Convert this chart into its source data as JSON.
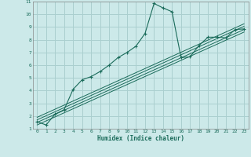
{
  "xlabel": "Humidex (Indice chaleur)",
  "bg_color": "#cce9e9",
  "grid_color": "#aacfcf",
  "line_color": "#1a6b5a",
  "xlim": [
    -0.5,
    23.5
  ],
  "ylim": [
    1,
    11
  ],
  "xticks": [
    0,
    1,
    2,
    3,
    4,
    5,
    6,
    7,
    8,
    9,
    10,
    11,
    12,
    13,
    14,
    15,
    16,
    17,
    18,
    19,
    20,
    21,
    22,
    23
  ],
  "yticks": [
    1,
    2,
    3,
    4,
    5,
    6,
    7,
    8,
    9,
    10,
    11
  ],
  "main_x": [
    0,
    1,
    2,
    3,
    4,
    5,
    6,
    7,
    8,
    9,
    10,
    11,
    12,
    13,
    14,
    15,
    16,
    17,
    18,
    19,
    20,
    21,
    22,
    23
  ],
  "main_y": [
    1.55,
    1.3,
    2.15,
    2.5,
    4.1,
    4.85,
    5.1,
    5.5,
    6.0,
    6.6,
    7.0,
    7.5,
    8.5,
    10.85,
    10.5,
    10.2,
    6.6,
    6.65,
    7.55,
    8.2,
    8.2,
    8.15,
    8.8,
    8.85
  ],
  "ref_lines": [
    {
      "x0": 0,
      "y0": 1.3,
      "x1": 23,
      "y1": 8.6
    },
    {
      "x0": 0,
      "y0": 1.5,
      "x1": 23,
      "y1": 8.8
    },
    {
      "x0": 0,
      "y0": 1.7,
      "x1": 23,
      "y1": 9.05
    },
    {
      "x0": 0,
      "y0": 1.9,
      "x1": 23,
      "y1": 9.25
    }
  ]
}
